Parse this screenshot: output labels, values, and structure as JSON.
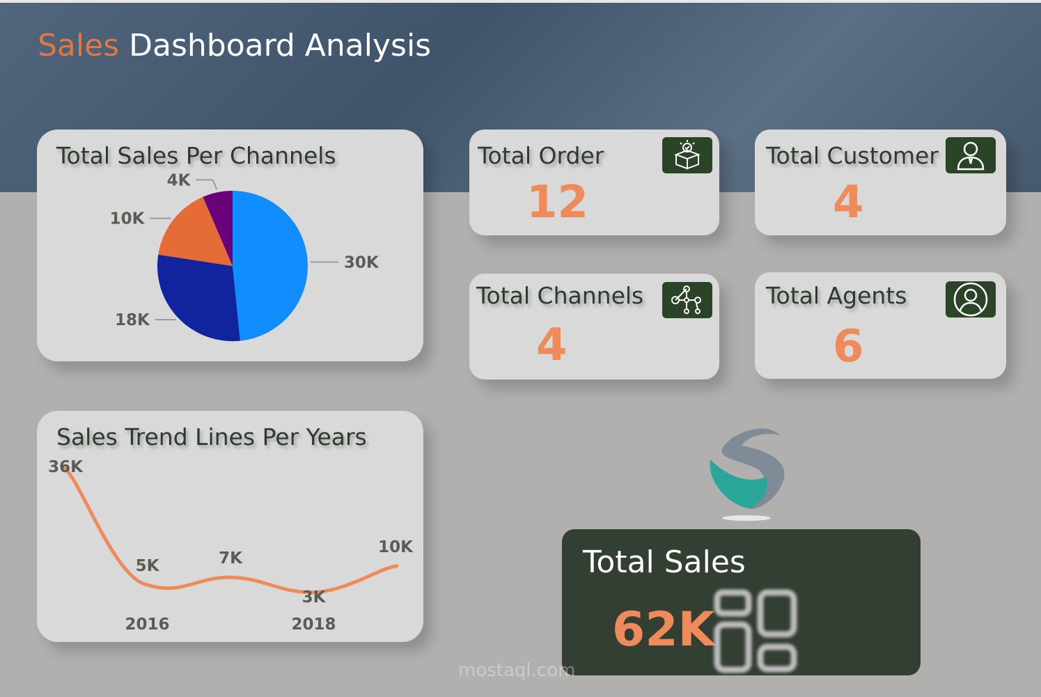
{
  "header": {
    "title_accent": "Sales",
    "title_rest": " Dashboard Analysis"
  },
  "pie_card": {
    "title": "Total Sales Per Channels"
  },
  "line_card": {
    "title": "Sales Trend Lines Per Years"
  },
  "kpis": [
    {
      "label": "Total Order",
      "value": "12",
      "icon": "box-check-icon"
    },
    {
      "label": "Total Customer",
      "value": "4",
      "icon": "user-tie-icon"
    },
    {
      "label": "Total Channels",
      "value": "4",
      "icon": "network-icon"
    },
    {
      "label": "Total Agents",
      "value": "6",
      "icon": "user-circle-icon"
    }
  ],
  "total_sales": {
    "label": "Total Sales",
    "value": "62K",
    "icon": "grid-icon"
  },
  "watermark": "mostaql.com",
  "chart_data": [
    {
      "type": "pie",
      "title": "Total Sales Per Channels",
      "values": [
        30000,
        18000,
        10000,
        4000
      ],
      "labels": [
        "30K",
        "18K",
        "10K",
        "4K"
      ],
      "colors": [
        "#118dff",
        "#12239e",
        "#e66c37",
        "#6b007b"
      ]
    },
    {
      "type": "line",
      "title": "Sales Trend Lines Per Years",
      "x": [
        2015,
        2016,
        2017,
        2018,
        2019
      ],
      "values": [
        36000,
        5000,
        7000,
        3000,
        10000
      ],
      "labels": [
        "36K",
        "5K",
        "7K",
        "3K",
        "10K"
      ],
      "xtick_labels": [
        "2016",
        "2018"
      ],
      "color": "#ef8a5a",
      "ylim": [
        0,
        36000
      ]
    }
  ]
}
